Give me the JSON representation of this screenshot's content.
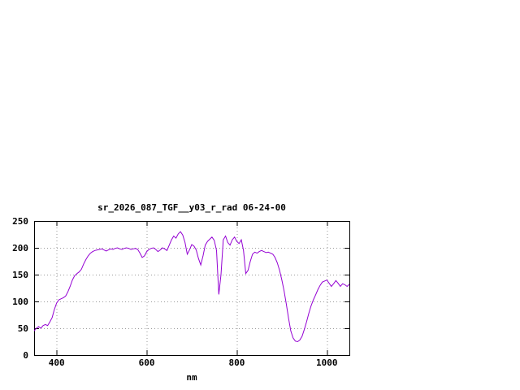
{
  "page": {
    "background": "#ffffff"
  },
  "chart_data": {
    "type": "line",
    "title": "sr_2026_087_TGF__y03_r_rad 06-24-00",
    "xlabel": "nm",
    "ylabel": "",
    "xlim": [
      350,
      1050
    ],
    "ylim": [
      0,
      250
    ],
    "x_ticks": [
      400,
      600,
      800,
      1000
    ],
    "y_ticks": [
      0,
      50,
      100,
      150,
      200,
      250
    ],
    "grid": true,
    "legend": "none",
    "line_color": "#9400d3",
    "grid_color": "#9a9a9a",
    "border_color": "#000000",
    "series": [
      {
        "x": [
          350,
          355,
          360,
          365,
          370,
          375,
          380,
          385,
          390,
          395,
          400,
          405,
          410,
          415,
          420,
          425,
          430,
          435,
          440,
          445,
          450,
          455,
          460,
          465,
          470,
          475,
          480,
          485,
          490,
          495,
          500,
          505,
          510,
          515,
          520,
          525,
          530,
          535,
          540,
          545,
          550,
          555,
          560,
          565,
          570,
          575,
          580,
          585,
          590,
          595,
          600,
          605,
          610,
          615,
          620,
          625,
          630,
          635,
          640,
          645,
          650,
          655,
          660,
          665,
          670,
          675,
          680,
          685,
          690,
          695,
          700,
          705,
          710,
          715,
          720,
          725,
          730,
          735,
          740,
          745,
          750,
          755,
          760,
          765,
          770,
          775,
          780,
          785,
          790,
          795,
          800,
          805,
          810,
          815,
          820,
          825,
          830,
          835,
          840,
          845,
          850,
          855,
          860,
          865,
          870,
          875,
          880,
          885,
          890,
          895,
          900,
          905,
          910,
          915,
          920,
          925,
          930,
          935,
          940,
          945,
          950,
          955,
          960,
          965,
          970,
          975,
          980,
          985,
          990,
          995,
          1000,
          1005,
          1010,
          1015,
          1020,
          1025,
          1030,
          1035,
          1040,
          1045,
          1050
        ],
        "y": [
          45,
          50,
          53,
          50,
          55,
          57,
          55,
          62,
          70,
          85,
          97,
          103,
          105,
          107,
          110,
          118,
          128,
          140,
          148,
          152,
          155,
          160,
          170,
          178,
          185,
          190,
          193,
          195,
          196,
          197,
          198,
          196,
          194,
          196,
          198,
          197,
          199,
          200,
          198,
          197,
          199,
          200,
          199,
          197,
          198,
          199,
          197,
          190,
          182,
          185,
          193,
          197,
          199,
          200,
          197,
          193,
          196,
          200,
          198,
          195,
          205,
          215,
          222,
          218,
          226,
          230,
          224,
          210,
          188,
          196,
          206,
          203,
          196,
          180,
          168,
          185,
          205,
          212,
          216,
          220,
          214,
          195,
          113,
          150,
          215,
          222,
          210,
          205,
          215,
          220,
          212,
          208,
          215,
          195,
          152,
          158,
          175,
          188,
          192,
          190,
          193,
          195,
          193,
          191,
          192,
          190,
          188,
          182,
          172,
          158,
          140,
          120,
          95,
          68,
          45,
          32,
          26,
          25,
          28,
          35,
          48,
          62,
          78,
          92,
          103,
          112,
          122,
          130,
          136,
          138,
          140,
          134,
          128,
          133,
          139,
          134,
          128,
          133,
          131,
          128,
          132
        ]
      }
    ]
  }
}
